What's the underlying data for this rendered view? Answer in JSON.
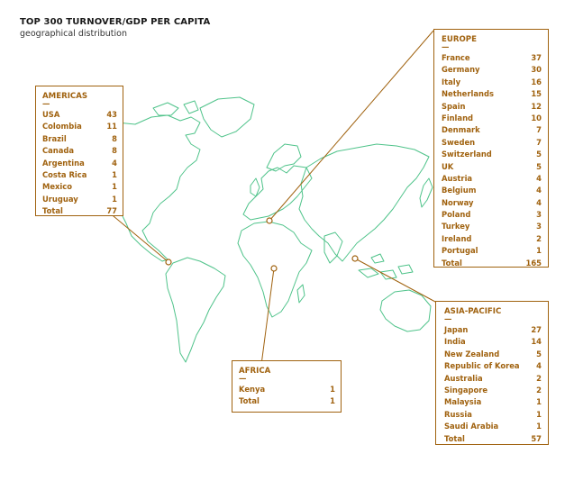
{
  "title": "TOP 300 TURNOVER/GDP PER CAPITA",
  "subtitle": "geographical distribution",
  "colors": {
    "accent": "#a0620f",
    "map_outline": "#4fc38a"
  },
  "regions": {
    "americas": {
      "name": "AMERICAS",
      "dash": "—",
      "items": [
        {
          "country": "USA",
          "count": "43"
        },
        {
          "country": "Colombia",
          "count": "11"
        },
        {
          "country": "Brazil",
          "count": "8"
        },
        {
          "country": "Canada",
          "count": "8"
        },
        {
          "country": "Argentina",
          "count": "4"
        },
        {
          "country": "Costa Rica",
          "count": "1"
        },
        {
          "country": "Mexico",
          "count": "1"
        },
        {
          "country": "Uruguay",
          "count": "1"
        },
        {
          "country": "Total",
          "count": "77"
        }
      ]
    },
    "europe": {
      "name": "EUROPE",
      "dash": "—",
      "items": [
        {
          "country": "France",
          "count": "37"
        },
        {
          "country": "Germany",
          "count": "30"
        },
        {
          "country": "Italy",
          "count": "16"
        },
        {
          "country": "Netherlands",
          "count": "15"
        },
        {
          "country": "Spain",
          "count": "12"
        },
        {
          "country": "Finland",
          "count": "10"
        },
        {
          "country": "Denmark",
          "count": "7"
        },
        {
          "country": "Sweden",
          "count": "7"
        },
        {
          "country": "Switzerland",
          "count": "5"
        },
        {
          "country": "UK",
          "count": "5"
        },
        {
          "country": "Austria",
          "count": "4"
        },
        {
          "country": "Belgium",
          "count": "4"
        },
        {
          "country": "Norway",
          "count": "4"
        },
        {
          "country": "Poland",
          "count": "3"
        },
        {
          "country": "Turkey",
          "count": "3"
        },
        {
          "country": "Ireland",
          "count": "2"
        },
        {
          "country": "Portugal",
          "count": "1"
        },
        {
          "country": "Total",
          "count": "165"
        }
      ]
    },
    "africa": {
      "name": "AFRICA",
      "dash": "—",
      "items": [
        {
          "country": "Kenya",
          "count": "1"
        },
        {
          "country": "Total",
          "count": "1"
        }
      ]
    },
    "asia_pacific": {
      "name": "ASIA-PACIFIC",
      "dash": "—",
      "items": [
        {
          "country": "Japan",
          "count": "27"
        },
        {
          "country": "India",
          "count": "14"
        },
        {
          "country": "New Zealand",
          "count": "5"
        },
        {
          "country": "Republic of Korea",
          "count": "4"
        },
        {
          "country": "Australia",
          "count": "2"
        },
        {
          "country": "Singapore",
          "count": "2"
        },
        {
          "country": "Malaysia",
          "count": "1"
        },
        {
          "country": "Russia",
          "count": "1"
        },
        {
          "country": "Saudi Arabia",
          "count": "1"
        },
        {
          "country": "Total",
          "count": "57"
        }
      ]
    }
  }
}
